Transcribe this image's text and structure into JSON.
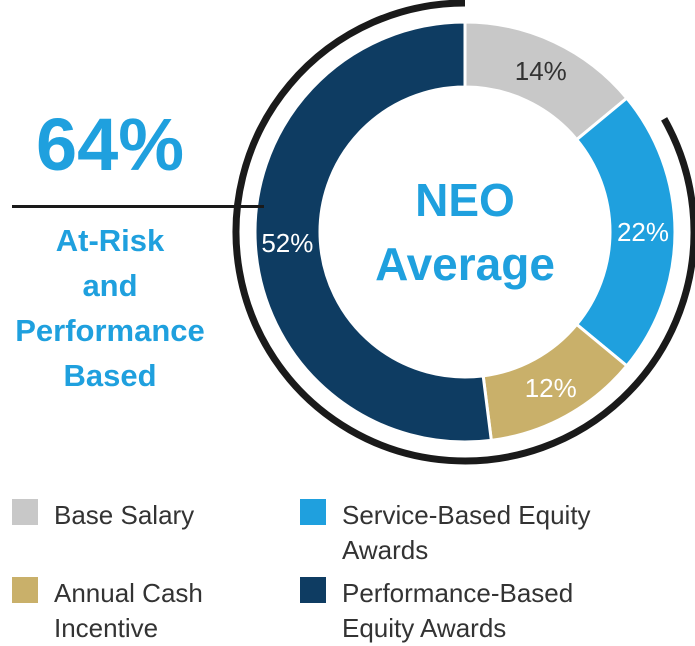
{
  "chart_data": {
    "type": "pie",
    "title": "",
    "center_label": [
      "NEO",
      "Average"
    ],
    "slices": [
      {
        "name": "Base Salary",
        "value": 14,
        "label": "14%",
        "color": "#c8c8c8",
        "label_color": "#333333"
      },
      {
        "name": "Service-Based Equity Awards",
        "value": 22,
        "label": "22%",
        "color": "#1fa0de",
        "label_color": "#ffffff"
      },
      {
        "name": "Annual Cash Incentive",
        "value": 12,
        "label": "12%",
        "color": "#c9b06a",
        "label_color": "#ffffff"
      },
      {
        "name": "Performance-Based Equity Awards",
        "value": 52,
        "label": "52%",
        "color": "#0e3c62",
        "label_color": "#ffffff"
      }
    ],
    "legend_placement": "bottom"
  },
  "callout": {
    "value": "64%",
    "label_lines": [
      "At-Risk",
      "and",
      "Performance",
      "Based"
    ]
  },
  "legend": [
    {
      "lines": [
        "Base Salary"
      ],
      "color": "#c8c8c8"
    },
    {
      "lines": [
        "Service-Based Equity",
        "Awards"
      ],
      "color": "#1fa0de"
    },
    {
      "lines": [
        "Annual Cash",
        "Incentive"
      ],
      "color": "#c9b06a"
    },
    {
      "lines": [
        "Performance-Based",
        "Equity Awards"
      ],
      "color": "#0e3c62"
    }
  ],
  "colors": {
    "accent": "#1fa0de",
    "rule": "#1a1a1a",
    "text": "#333333"
  }
}
